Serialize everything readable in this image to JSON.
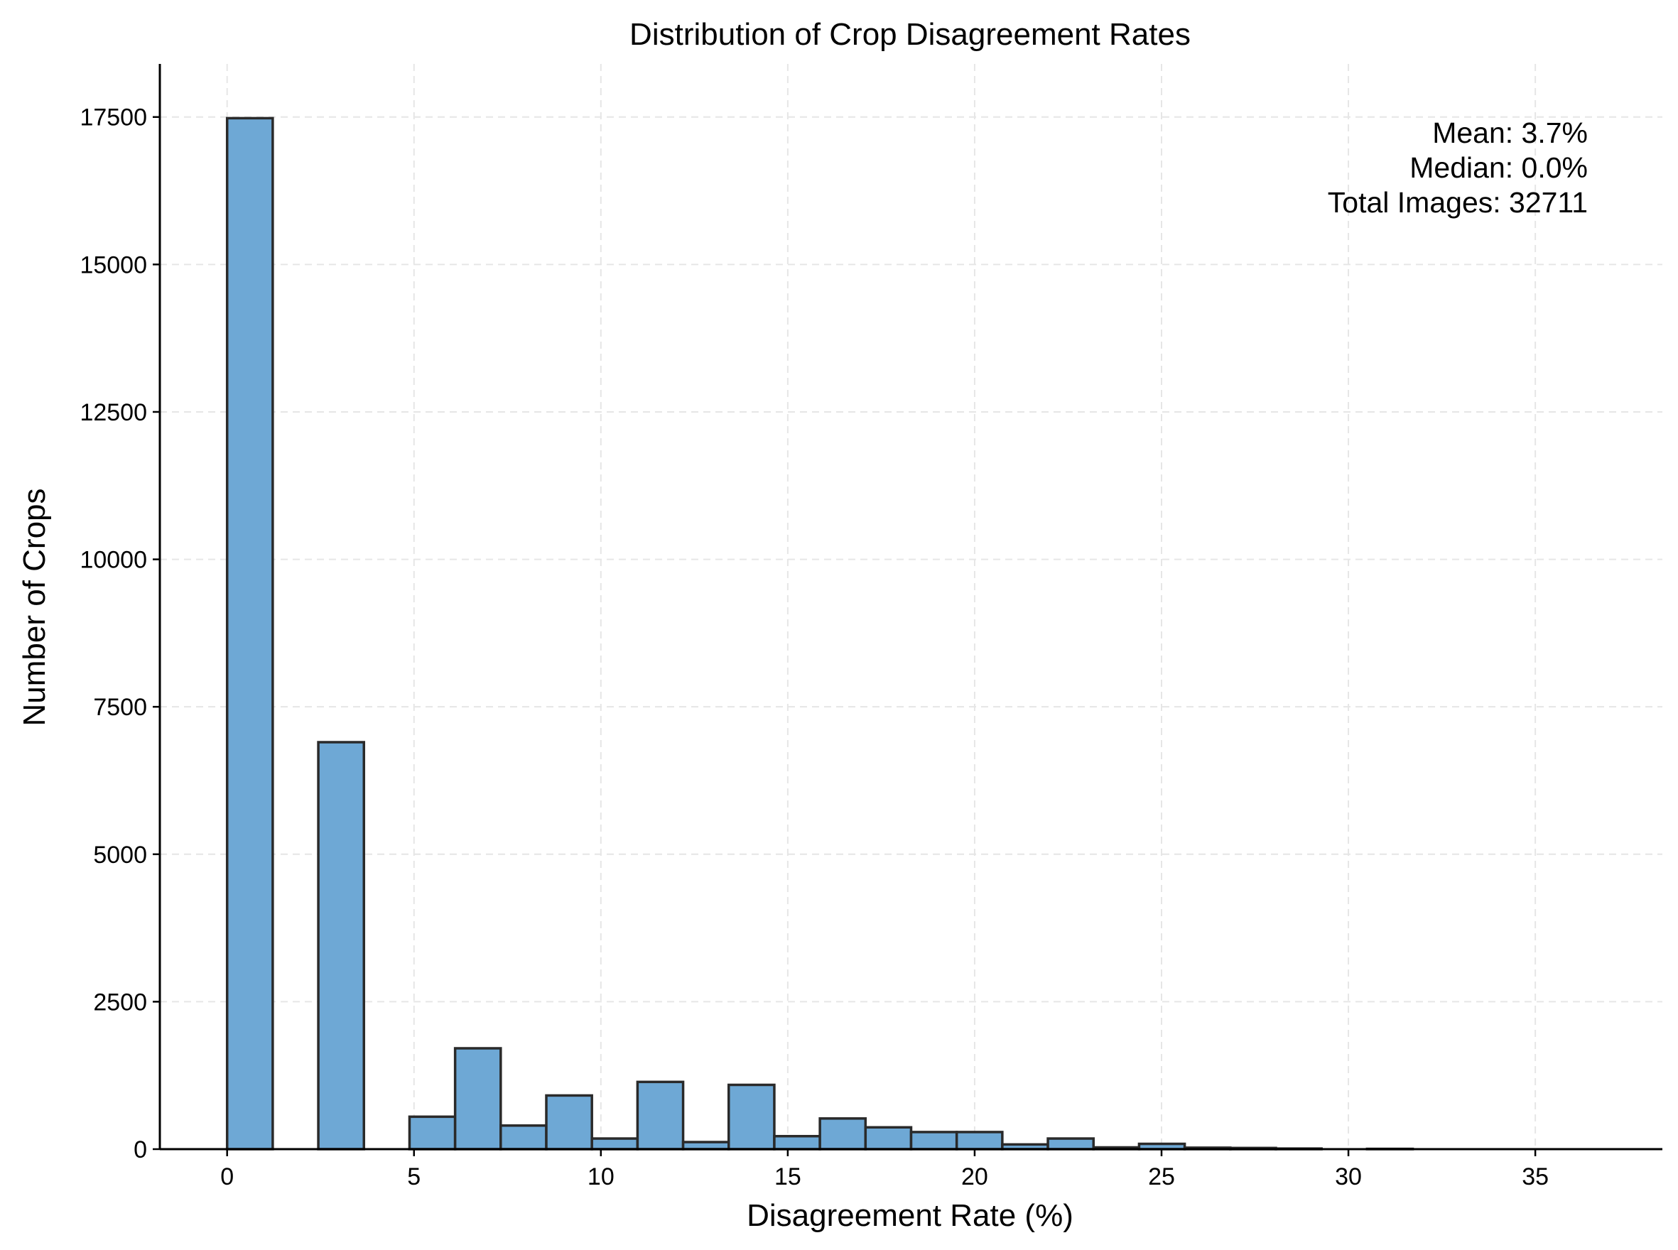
{
  "chart_data": {
    "type": "bar",
    "title": "Distribution of Crop Disagreement Rates",
    "xlabel": "Disagreement Rate (%)",
    "ylabel": "Number of Crops",
    "xlim": [
      -1.8,
      38.4
    ],
    "ylim": [
      0,
      18400
    ],
    "xticks": [
      0,
      5,
      10,
      15,
      20,
      25,
      30,
      35
    ],
    "yticks": [
      0,
      2500,
      5000,
      7500,
      10000,
      12500,
      15000,
      17500
    ],
    "grid": true,
    "bin_width": 1.22,
    "bins": [
      {
        "x0": 0.0,
        "value": 17480
      },
      {
        "x0": 1.22,
        "value": 0
      },
      {
        "x0": 2.44,
        "value": 6900
      },
      {
        "x0": 3.66,
        "value": 0
      },
      {
        "x0": 4.88,
        "value": 550
      },
      {
        "x0": 6.1,
        "value": 1710
      },
      {
        "x0": 7.32,
        "value": 400
      },
      {
        "x0": 8.54,
        "value": 910
      },
      {
        "x0": 9.76,
        "value": 180
      },
      {
        "x0": 10.98,
        "value": 1140
      },
      {
        "x0": 12.2,
        "value": 120
      },
      {
        "x0": 13.42,
        "value": 1090
      },
      {
        "x0": 14.64,
        "value": 220
      },
      {
        "x0": 15.86,
        "value": 520
      },
      {
        "x0": 17.08,
        "value": 370
      },
      {
        "x0": 18.3,
        "value": 290
      },
      {
        "x0": 19.52,
        "value": 290
      },
      {
        "x0": 20.74,
        "value": 80
      },
      {
        "x0": 21.96,
        "value": 180
      },
      {
        "x0": 23.18,
        "value": 30
      },
      {
        "x0": 24.4,
        "value": 90
      },
      {
        "x0": 25.62,
        "value": 25
      },
      {
        "x0": 26.84,
        "value": 20
      },
      {
        "x0": 28.06,
        "value": 10
      },
      {
        "x0": 29.28,
        "value": 0
      },
      {
        "x0": 30.5,
        "value": 5
      },
      {
        "x0": 31.72,
        "value": 0
      },
      {
        "x0": 32.94,
        "value": 0
      },
      {
        "x0": 34.16,
        "value": 0
      },
      {
        "x0": 35.38,
        "value": 0
      },
      {
        "x0": 36.6,
        "value": 0
      }
    ],
    "annotations": [
      "Mean: 3.7%",
      "Median: 0.0%",
      "Total Images: 32711"
    ],
    "colors": {
      "bar_fill": "#6ea8d5",
      "bar_edge": "#2a2a2a",
      "grid": "#e6e6e6"
    }
  }
}
